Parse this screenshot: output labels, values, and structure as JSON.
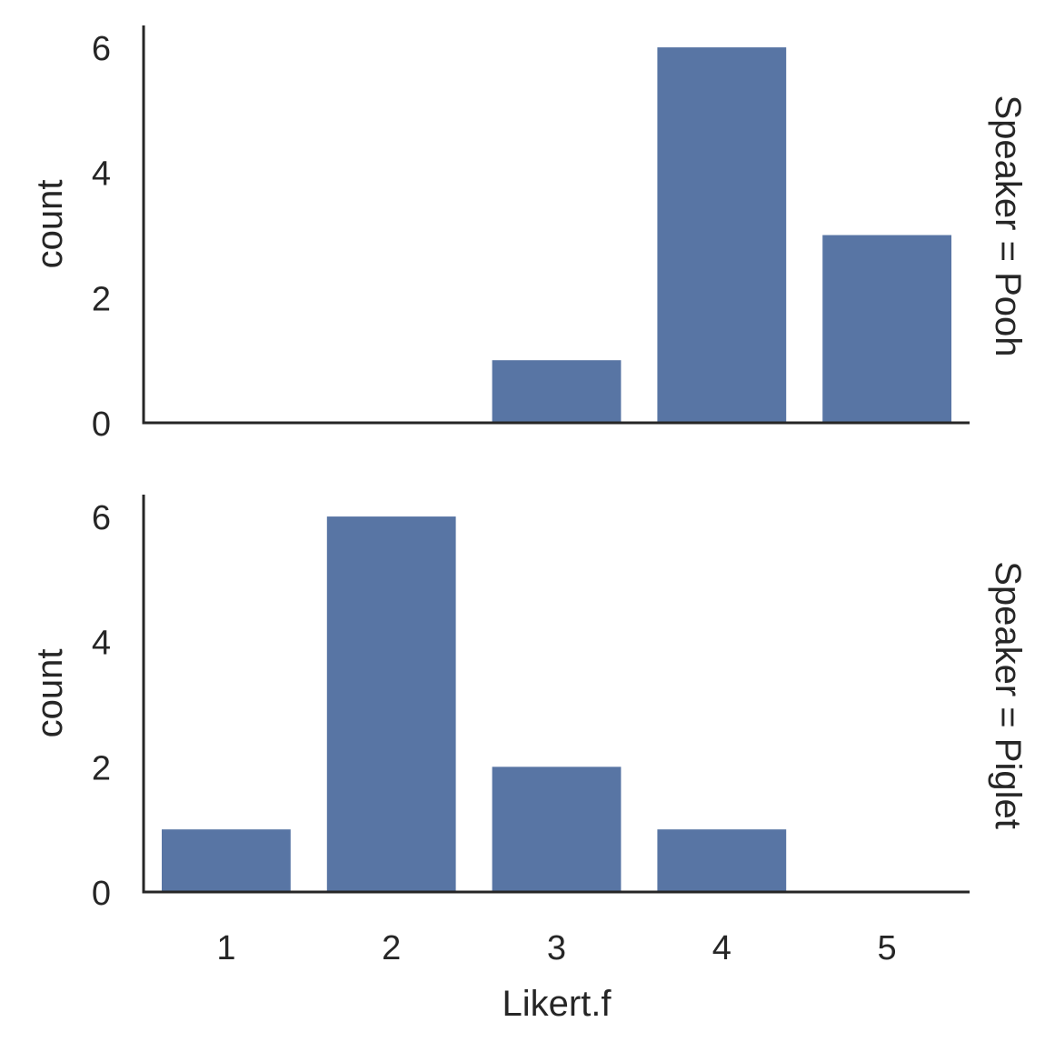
{
  "chart_data": [
    {
      "type": "bar",
      "facet_label": "Speaker = Pooh",
      "categories": [
        "1",
        "2",
        "3",
        "4",
        "5"
      ],
      "values": [
        0,
        0,
        1,
        6,
        3
      ],
      "ylabel": "count",
      "xlabel": "",
      "ylim": [
        0,
        6.35
      ],
      "yticks": [
        "0",
        "2",
        "4",
        "6"
      ],
      "color": "#5875a4",
      "grid": false
    },
    {
      "type": "bar",
      "facet_label": "Speaker = Piglet",
      "categories": [
        "1",
        "2",
        "3",
        "4",
        "5"
      ],
      "values": [
        1,
        6,
        2,
        1,
        0
      ],
      "ylabel": "count",
      "xlabel": "Likert.f",
      "ylim": [
        0,
        6.35
      ],
      "yticks": [
        "0",
        "2",
        "4",
        "6"
      ],
      "color": "#5875a4",
      "grid": false
    }
  ]
}
